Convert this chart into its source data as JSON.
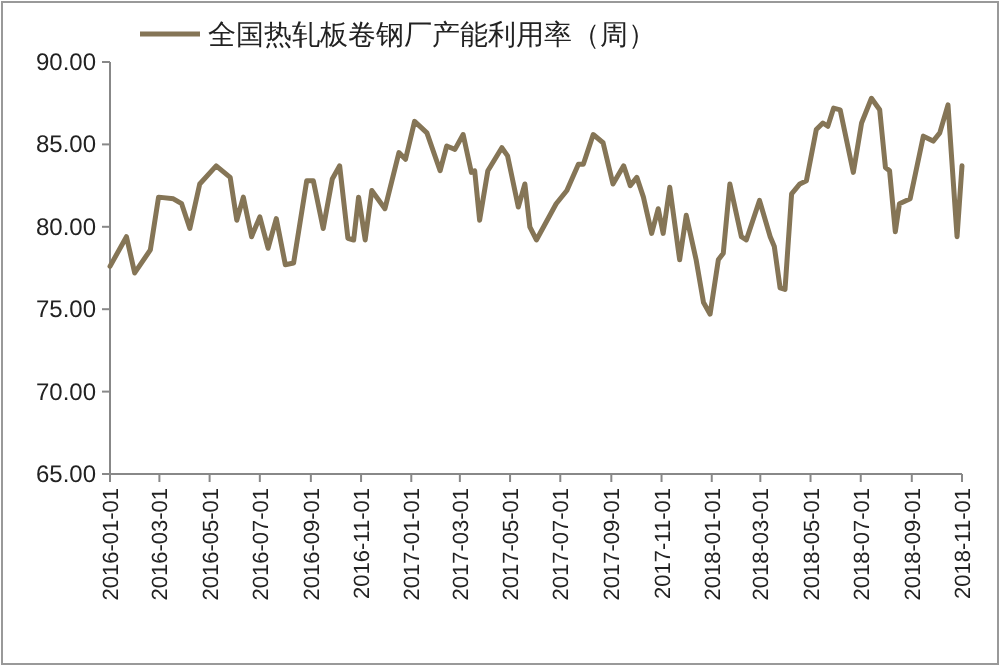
{
  "chart_data": {
    "type": "line",
    "x": [
      "2016-01-01",
      "2016-01-21",
      "2016-01-31",
      "2016-02-19",
      "2016-02-29",
      "2016-03-18",
      "2016-03-28",
      "2016-04-07",
      "2016-04-19",
      "2016-05-09",
      "2016-05-26",
      "2016-06-03",
      "2016-06-11",
      "2016-06-21",
      "2016-07-01",
      "2016-07-11",
      "2016-07-21",
      "2016-08-01",
      "2016-08-11",
      "2016-08-27",
      "2016-09-04",
      "2016-09-16",
      "2016-09-27",
      "2016-10-06",
      "2016-10-16",
      "2016-10-23",
      "2016-10-29",
      "2016-11-06",
      "2016-11-14",
      "2016-11-30",
      "2016-12-17",
      "2016-12-25",
      "2017-01-05",
      "2017-01-20",
      "2017-02-05",
      "2017-02-13",
      "2017-02-23",
      "2017-03-05",
      "2017-03-15",
      "2017-03-19",
      "2017-03-25",
      "2017-04-04",
      "2017-04-21",
      "2017-04-28",
      "2017-05-11",
      "2017-05-19",
      "2017-05-25",
      "2017-06-02",
      "2017-06-26",
      "2017-07-09",
      "2017-07-23",
      "2017-07-29",
      "2017-08-10",
      "2017-08-22",
      "2017-09-03",
      "2017-09-16",
      "2017-09-24",
      "2017-10-02",
      "2017-10-10",
      "2017-10-20",
      "2017-10-28",
      "2017-11-03",
      "2017-11-11",
      "2017-11-23",
      "2017-12-01",
      "2017-12-13",
      "2017-12-22",
      "2017-12-30",
      "2018-01-09",
      "2018-01-15",
      "2018-01-23",
      "2018-02-06",
      "2018-02-12",
      "2018-02-28",
      "2018-03-13",
      "2018-03-18",
      "2018-03-25",
      "2018-03-31",
      "2018-04-08",
      "2018-04-18",
      "2018-04-26",
      "2018-05-08",
      "2018-05-16",
      "2018-05-22",
      "2018-05-29",
      "2018-06-06",
      "2018-06-22",
      "2018-07-02",
      "2018-07-14",
      "2018-07-24",
      "2018-07-31",
      "2018-08-05",
      "2018-08-12",
      "2018-08-17",
      "2018-08-30",
      "2018-09-15",
      "2018-09-27",
      "2018-10-05",
      "2018-10-15",
      "2018-10-26",
      "2018-11-01"
    ],
    "series": [
      {
        "name": "全国热轧板卷钢厂产能利用率（周）",
        "color": "#857556",
        "values": [
          77.6,
          79.4,
          77.2,
          78.6,
          81.8,
          81.7,
          81.4,
          79.9,
          82.6,
          83.7,
          83.0,
          80.4,
          81.8,
          79.4,
          80.6,
          78.7,
          80.5,
          77.7,
          77.8,
          82.8,
          82.8,
          79.9,
          82.9,
          83.7,
          79.3,
          79.2,
          81.8,
          79.2,
          82.2,
          81.1,
          84.5,
          84.1,
          86.4,
          85.7,
          83.4,
          84.9,
          84.7,
          85.6,
          83.3,
          83.4,
          80.4,
          83.4,
          84.8,
          84.3,
          81.2,
          82.6,
          80.0,
          79.2,
          81.4,
          82.2,
          83.8,
          83.8,
          85.6,
          85.1,
          82.6,
          83.7,
          82.5,
          83.0,
          81.8,
          79.6,
          81.1,
          79.6,
          82.4,
          78.0,
          80.7,
          78.0,
          75.4,
          74.7,
          78.0,
          78.4,
          82.6,
          79.4,
          79.2,
          81.6,
          79.4,
          78.8,
          76.3,
          76.2,
          82.0,
          82.6,
          82.8,
          85.9,
          86.3,
          86.1,
          87.2,
          87.1,
          83.3,
          86.3,
          87.8,
          87.1,
          83.6,
          83.4,
          79.7,
          81.4,
          81.7,
          85.5,
          85.2,
          85.7,
          87.4,
          79.4,
          83.7
        ]
      }
    ],
    "xlim": [
      "2016-01-01",
      "2018-11-01"
    ],
    "xticks": [
      "2016-01-01",
      "2016-03-01",
      "2016-05-01",
      "2016-07-01",
      "2016-09-01",
      "2016-11-01",
      "2017-01-01",
      "2017-03-01",
      "2017-05-01",
      "2017-07-01",
      "2017-09-01",
      "2017-11-01",
      "2018-01-01",
      "2018-03-01",
      "2018-05-01",
      "2018-07-01",
      "2018-09-01",
      "2018-11-01"
    ],
    "ylim": [
      65,
      90
    ],
    "yticks": [
      {
        "value": 65,
        "label": "65.00"
      },
      {
        "value": 70,
        "label": "70.00"
      },
      {
        "value": 75,
        "label": "75.00"
      },
      {
        "value": 80,
        "label": "80.00"
      },
      {
        "value": 85,
        "label": "85.00"
      },
      {
        "value": 90,
        "label": "90.00"
      }
    ],
    "legend": "top"
  }
}
